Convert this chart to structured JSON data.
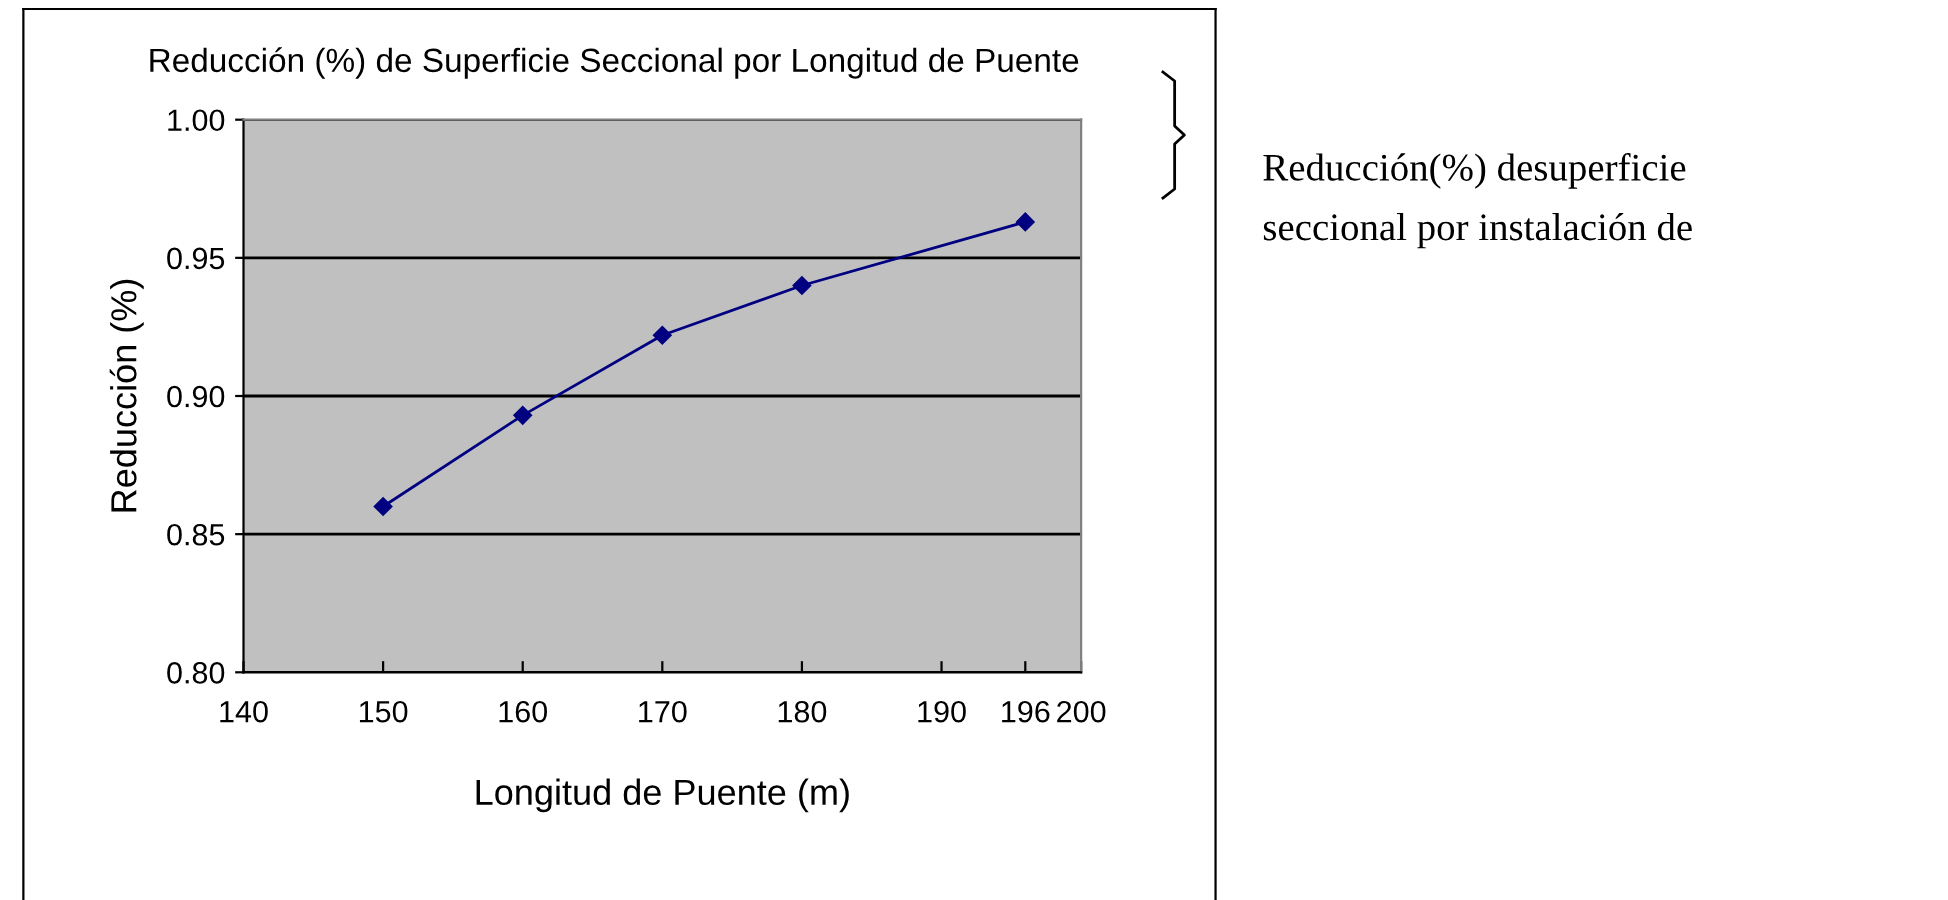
{
  "chart_data": {
    "type": "line",
    "title": "Reducción (%) de Superficie Seccional por Longitud de Puente",
    "xlabel": "Longitud de Puente (m)",
    "ylabel": "Reducción (%)",
    "x": [
      150,
      160,
      170,
      180,
      196
    ],
    "series": [
      {
        "color": "#000080",
        "values": [
          0.86,
          0.893,
          0.922,
          0.94,
          0.963
        ]
      }
    ],
    "xlim": [
      140,
      200
    ],
    "xticks": [
      140,
      150,
      160,
      170,
      180,
      190,
      196,
      200
    ],
    "ylim": [
      0.8,
      1.0
    ],
    "yticks": [
      {
        "value": 0.8,
        "label": "0.80"
      },
      {
        "value": 0.85,
        "label": "0.85"
      },
      {
        "value": 0.9,
        "label": "0.90"
      },
      {
        "value": 0.95,
        "label": "0.95"
      },
      {
        "value": 1.0,
        "label": "1.00"
      }
    ],
    "grid": "y",
    "marker": "diamond",
    "line_style": "solid",
    "annotations": [
      "Reducción(%) desuperficie\nseccional por instalación de"
    ]
  }
}
